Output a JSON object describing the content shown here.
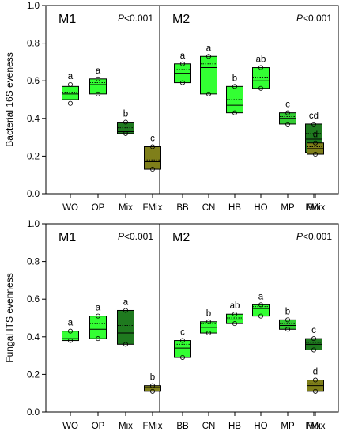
{
  "chart_data": [
    {
      "type": "box",
      "ylabel": "Bacterial 16S eveness",
      "ylim": [
        0,
        1.0
      ],
      "yticks": [
        "0.0",
        "0.2",
        "0.4",
        "0.6",
        "0.8",
        "1.0"
      ],
      "panels": [
        {
          "title": "M1",
          "p_value": "P<0.001",
          "groups": [
            {
              "name": "WO",
              "color": "#33ff33",
              "q1": 0.5,
              "median": 0.53,
              "mean": 0.54,
              "q3": 0.57,
              "points": [
                0.48,
                0.58
              ],
              "letter": "a"
            },
            {
              "name": "OP",
              "color": "#33ff33",
              "q1": 0.53,
              "median": 0.58,
              "mean": 0.59,
              "q3": 0.61,
              "points": [
                0.53,
                0.61
              ],
              "letter": "a"
            },
            {
              "name": "Mix",
              "color": "#1f7a1f",
              "q1": 0.32,
              "median": 0.33,
              "mean": 0.35,
              "q3": 0.38,
              "points": [
                0.32,
                0.38
              ],
              "letter": "b"
            },
            {
              "name": "FMix",
              "color": "#7f7f1a",
              "q1": 0.13,
              "median": 0.17,
              "mean": 0.18,
              "q3": 0.25,
              "points": [
                0.13,
                0.25
              ],
              "letter": "c"
            }
          ]
        },
        {
          "title": "M2",
          "p_value": "P<0.001",
          "groups": [
            {
              "name": "BB",
              "color": "#33ff33",
              "q1": 0.59,
              "median": 0.64,
              "mean": 0.66,
              "q3": 0.69,
              "points": [
                0.59,
                0.69
              ],
              "letter": "a"
            },
            {
              "name": "CN",
              "color": "#33ff33",
              "q1": 0.53,
              "median": 0.67,
              "mean": 0.69,
              "q3": 0.73,
              "points": [
                0.53,
                0.73
              ],
              "letter": "a"
            },
            {
              "name": "HB",
              "color": "#33ff33",
              "q1": 0.43,
              "median": 0.47,
              "mean": 0.5,
              "q3": 0.57,
              "points": [
                0.43,
                0.57
              ],
              "letter": "b"
            },
            {
              "name": "HO",
              "color": "#33ff33",
              "q1": 0.56,
              "median": 0.6,
              "mean": 0.62,
              "q3": 0.67,
              "points": [
                0.56,
                0.67
              ],
              "letter": "ab"
            },
            {
              "name": "MP",
              "color": "#33cc33",
              "q1": 0.37,
              "median": 0.4,
              "mean": 0.41,
              "q3": 0.43,
              "points": [
                0.37,
                0.43
              ],
              "letter": "c"
            },
            {
              "name": "Mix",
              "color": "#1f7a1f",
              "q1": 0.22,
              "median": 0.29,
              "mean": 0.32,
              "q3": 0.37,
              "points": [
                0.22,
                0.37
              ],
              "letter": "cd"
            },
            {
              "name": "FMix",
              "color": "#7f7f1a",
              "q1": 0.21,
              "median": 0.24,
              "mean": 0.25,
              "q3": 0.27,
              "points": [
                0.21,
                0.27
              ],
              "letter": "d"
            }
          ]
        }
      ]
    },
    {
      "type": "box",
      "ylabel": "Fungal ITS evenness",
      "ylim": [
        0,
        1.0
      ],
      "yticks": [
        "0.0",
        "0.2",
        "0.4",
        "0.6",
        "0.8",
        "1.0"
      ],
      "panels": [
        {
          "title": "M1",
          "p_value": "P<0.001",
          "groups": [
            {
              "name": "WO",
              "color": "#33ff33",
              "q1": 0.38,
              "median": 0.39,
              "mean": 0.41,
              "q3": 0.43,
              "points": [
                0.38,
                0.43
              ],
              "letter": "a"
            },
            {
              "name": "OP",
              "color": "#33ff33",
              "q1": 0.39,
              "median": 0.44,
              "mean": 0.47,
              "q3": 0.51,
              "points": [
                0.39,
                0.51
              ],
              "letter": "a"
            },
            {
              "name": "Mix",
              "color": "#1f7a1f",
              "q1": 0.36,
              "median": 0.42,
              "mean": 0.46,
              "q3": 0.54,
              "points": [
                0.36,
                0.54
              ],
              "letter": "a"
            },
            {
              "name": "FMix",
              "color": "#7f7f1a",
              "q1": 0.11,
              "median": 0.13,
              "mean": 0.13,
              "q3": 0.14,
              "points": [
                0.11,
                0.14
              ],
              "letter": "b"
            }
          ]
        },
        {
          "title": "M2",
          "p_value": "P<0.001",
          "groups": [
            {
              "name": "BB",
              "color": "#33ff33",
              "q1": 0.29,
              "median": 0.34,
              "mean": 0.36,
              "q3": 0.38,
              "points": [
                0.29,
                0.38
              ],
              "letter": "c"
            },
            {
              "name": "CN",
              "color": "#33ff33",
              "q1": 0.42,
              "median": 0.45,
              "mean": 0.47,
              "q3": 0.48,
              "points": [
                0.42,
                0.48
              ],
              "letter": "b"
            },
            {
              "name": "HB",
              "color": "#33ff33",
              "q1": 0.47,
              "median": 0.49,
              "mean": 0.5,
              "q3": 0.52,
              "points": [
                0.47,
                0.52
              ],
              "letter": "ab"
            },
            {
              "name": "HO",
              "color": "#33ff33",
              "q1": 0.51,
              "median": 0.55,
              "mean": 0.56,
              "q3": 0.57,
              "points": [
                0.51,
                0.57
              ],
              "letter": "a"
            },
            {
              "name": "MP",
              "color": "#33cc33",
              "q1": 0.44,
              "median": 0.46,
              "mean": 0.47,
              "q3": 0.49,
              "points": [
                0.44,
                0.49
              ],
              "letter": "b"
            },
            {
              "name": "Mix",
              "color": "#1f7a1f",
              "q1": 0.33,
              "median": 0.36,
              "mean": 0.37,
              "q3": 0.39,
              "points": [
                0.33,
                0.39
              ],
              "letter": "c"
            },
            {
              "name": "FMix",
              "color": "#7f7f1a",
              "q1": 0.11,
              "median": 0.14,
              "mean": 0.15,
              "q3": 0.17,
              "points": [
                0.11,
                0.17
              ],
              "letter": "d"
            }
          ]
        }
      ]
    }
  ]
}
